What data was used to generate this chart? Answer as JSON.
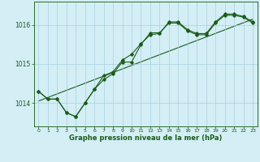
{
  "xlabel": "Graphe pression niveau de la mer (hPa)",
  "bg_color": "#d4eef5",
  "grid_color": "#aacfdf",
  "line_color": "#1a5c1a",
  "x_values": [
    0,
    1,
    2,
    3,
    4,
    5,
    6,
    7,
    8,
    9,
    10,
    11,
    12,
    13,
    14,
    15,
    16,
    17,
    18,
    19,
    20,
    21,
    22,
    23
  ],
  "series1": [
    1014.3,
    1014.1,
    1014.1,
    1013.75,
    1013.65,
    1014.0,
    1014.35,
    1014.6,
    1014.75,
    1015.05,
    1015.05,
    1015.5,
    1015.8,
    1015.8,
    1016.05,
    1016.05,
    1015.85,
    1015.75,
    1015.75,
    1016.05,
    1016.25,
    1016.25,
    1016.2,
    1016.05
  ],
  "series2": [
    1014.3,
    1014.1,
    1014.1,
    1013.75,
    1013.65,
    1014.0,
    1014.35,
    1014.7,
    1014.8,
    1015.1,
    1015.25,
    1015.52,
    1015.75,
    1015.78,
    1016.08,
    1016.08,
    1015.88,
    1015.78,
    1015.78,
    1016.08,
    1016.28,
    1016.28,
    1016.22,
    1016.08
  ],
  "trend_x": [
    0,
    23
  ],
  "trend_y": [
    1014.05,
    1016.15
  ],
  "ylim": [
    1013.4,
    1016.6
  ],
  "yticks": [
    1014,
    1015,
    1016
  ],
  "xticks": [
    0,
    1,
    2,
    3,
    4,
    5,
    6,
    7,
    8,
    9,
    10,
    11,
    12,
    13,
    14,
    15,
    16,
    17,
    18,
    19,
    20,
    21,
    22,
    23
  ]
}
